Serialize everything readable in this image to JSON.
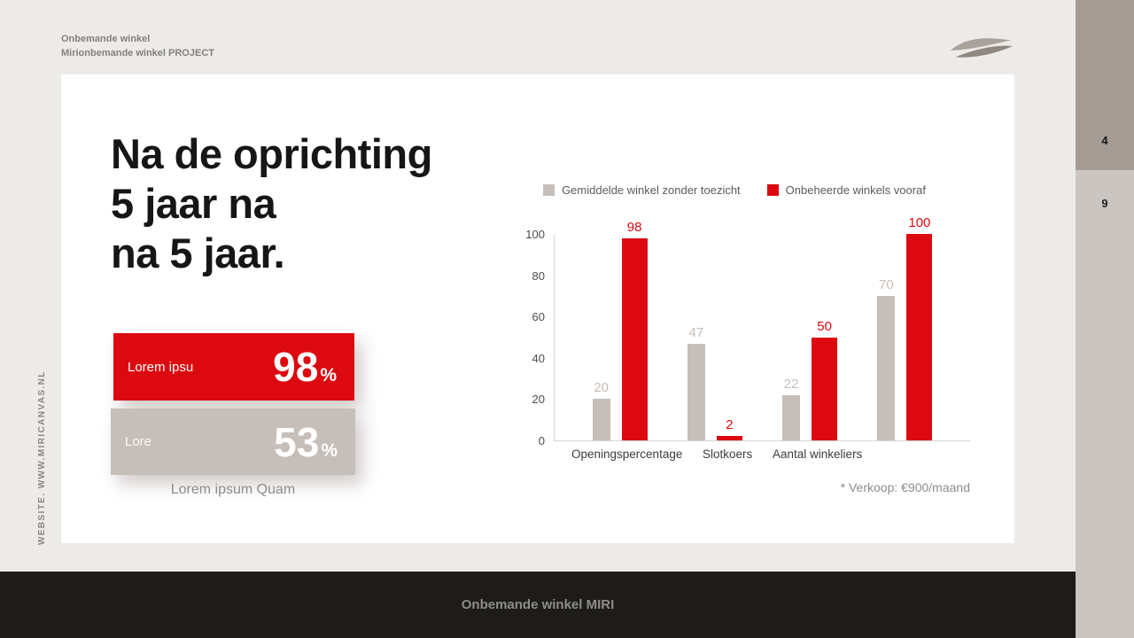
{
  "header": {
    "line1": "Onbemande winkel",
    "line2": "Mirionbemande winkel PROJECT"
  },
  "side": {
    "vertical_text": "WEBSITE. WWW.MIRICANVAS.NL",
    "page_num_top": "4",
    "page_num_bottom": "9"
  },
  "footer": {
    "text": "Onbemande winkel MIRI"
  },
  "slide": {
    "title_line1": "Na de oprichting",
    "title_line2": "5 jaar na",
    "title_line3": "na 5 jaar.",
    "stat_red": {
      "label": "Lorem ipsu",
      "value": "98",
      "unit": "%"
    },
    "stat_gray": {
      "label": "Lore",
      "value": "53",
      "unit": "%"
    },
    "caption": "Lorem ipsum Quam"
  },
  "colors": {
    "accent_red": "#dc0a10",
    "neutral_bar": "#c6beb9",
    "card_bg": "#ffffff",
    "page_bg": "#edebe8",
    "footer_bg": "#1d1c1a"
  },
  "chart_data": {
    "type": "bar",
    "title": "",
    "categories": [
      "Openingspercentage",
      "Slotkoers",
      "Aantal winkeliers",
      ""
    ],
    "series": [
      {
        "name": "Gemiddelde winkel zonder toezicht",
        "color": "#c6beb9",
        "values": [
          20,
          47,
          22,
          70
        ]
      },
      {
        "name": "Onbeheerde winkels vooraf",
        "color": "#dc0a10",
        "values": [
          98,
          2,
          50,
          100
        ]
      }
    ],
    "ylim": [
      0,
      100
    ],
    "yticks": [
      0,
      20,
      40,
      60,
      80,
      100
    ],
    "grid": false,
    "legend_position": "top",
    "note": "* Verkoop: €900/maand"
  }
}
